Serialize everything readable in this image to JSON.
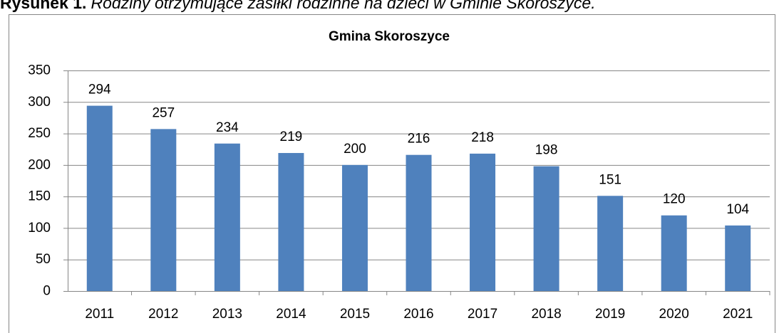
{
  "chart_data": {
    "type": "bar",
    "figure_label": "Rysunek 1.",
    "caption": "Rodziny otrzymujące zasiłki rodzinne na dzieci w Gminie Skoroszyce.",
    "title": "Gmina Skoroszyce",
    "categories": [
      "2011",
      "2012",
      "2013",
      "2014",
      "2015",
      "2016",
      "2017",
      "2018",
      "2019",
      "2020",
      "2021"
    ],
    "values": [
      294,
      257,
      234,
      219,
      200,
      216,
      218,
      198,
      151,
      120,
      104
    ],
    "color": "#4f81bd",
    "ylim": [
      0,
      350
    ],
    "yticks": [
      0,
      50,
      100,
      150,
      200,
      250,
      300,
      350
    ],
    "grid": true
  }
}
